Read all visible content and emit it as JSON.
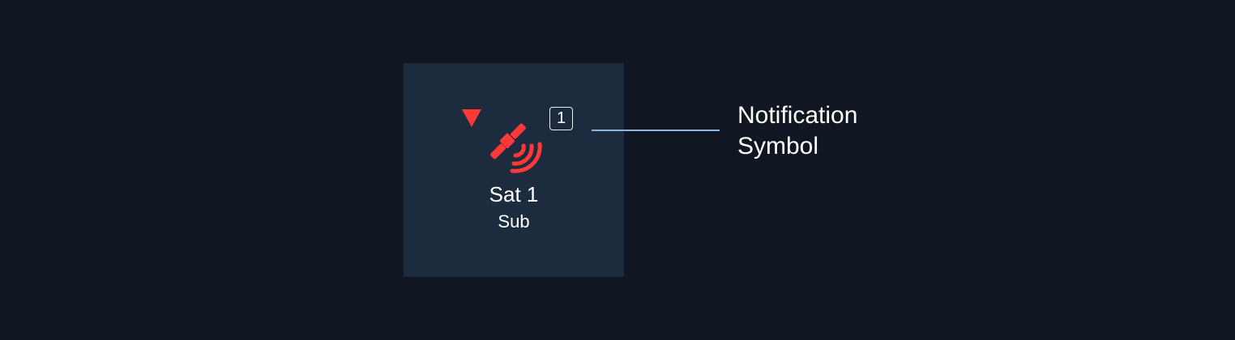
{
  "tile": {
    "name": "Sat 1",
    "subtitle": "Sub",
    "notification_count": "1",
    "status_icon": "down-triangle-icon",
    "device_icon": "satellite-icon",
    "alert_color": "#ff3838"
  },
  "annotation": {
    "line1": "Notification",
    "line2": "Symbol",
    "line_color": "#8fb4de"
  },
  "colors": {
    "background": "#111722",
    "tile_background": "#1d2b3f",
    "text": "#ffffff"
  }
}
